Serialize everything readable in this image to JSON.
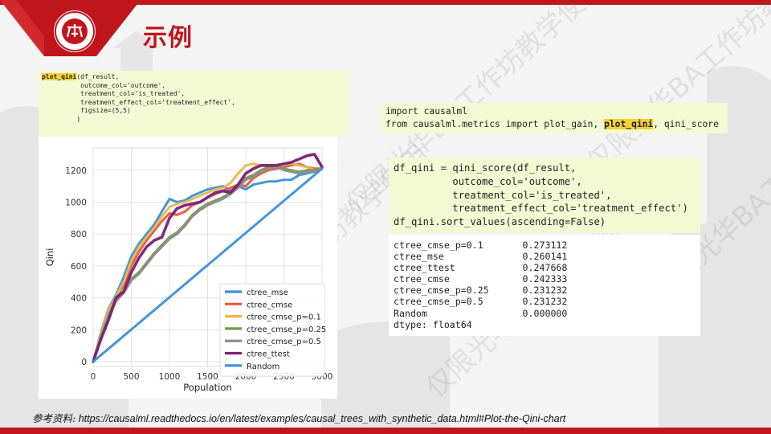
{
  "slide": {
    "title": "示例",
    "accent_color": "#c0151b",
    "logo_icon": "university-seal-icon",
    "logo_text": "PEKING UNIVERSITY 1898",
    "watermark_text": "仅限光华BA工作坊教学使用"
  },
  "qini_call": {
    "function_name": "plot_qini",
    "lines": [
      "(df_result,",
      "          outcome_col='outcome',",
      "          treatment_col='is_treated',",
      "          treatment_effect_col='treatment_effect',",
      "          figsize=(5,5)",
      "         )"
    ]
  },
  "imports": {
    "line1": "import causalml",
    "line2_pre": "from causalml.metrics import plot_gain, ",
    "line2_hl": "plot_qini",
    "line2_post": ", qini_score"
  },
  "score_code": {
    "lines": [
      "df_qini = qini_score(df_result,",
      "          outcome_col='outcome',",
      "          treatment_col='is_treated',",
      "          treatment_effect_col='treatment_effect')",
      "df_qini.sort_values(ascending=False)"
    ]
  },
  "score_output": {
    "lines": [
      "ctree_cmse_p=0.1       0.273112",
      "ctree_mse              0.260141",
      "ctree_ttest            0.247668",
      "ctree_cmse             0.242333",
      "ctree_cmse_p=0.25      0.231232",
      "ctree_cmse_p=0.5       0.231232",
      "Random                 0.000000",
      "dtype: float64"
    ]
  },
  "chart_data": {
    "type": "line",
    "xlabel": "Population",
    "ylabel": "Qini",
    "xlim": [
      0,
      3000
    ],
    "ylim": [
      0,
      1300
    ],
    "xticks": [
      0,
      500,
      1000,
      1500,
      2000,
      2500,
      3000
    ],
    "yticks": [
      0,
      200,
      400,
      600,
      800,
      1000,
      1200
    ],
    "grid": true,
    "legend_position": "lower-right",
    "series": [
      {
        "name": "ctree_mse",
        "color": "#3b8fd9",
        "x": [
          0,
          100,
          200,
          300,
          400,
          500,
          600,
          700,
          800,
          900,
          1000,
          1100,
          1200,
          1300,
          1400,
          1500,
          1600,
          1700,
          1800,
          1900,
          2000,
          2100,
          2200,
          2300,
          2400,
          2500,
          2600,
          2700,
          2800,
          2900,
          3000
        ],
        "y": [
          0,
          180,
          330,
          420,
          530,
          660,
          740,
          800,
          860,
          940,
          1020,
          1000,
          1010,
          1040,
          1060,
          1080,
          1090,
          1100,
          1070,
          1100,
          1080,
          1110,
          1120,
          1130,
          1130,
          1140,
          1140,
          1170,
          1180,
          1190,
          1210
        ]
      },
      {
        "name": "ctree_cmse",
        "color": "#e8583a",
        "x": [
          0,
          100,
          200,
          300,
          400,
          500,
          600,
          700,
          800,
          900,
          1000,
          1100,
          1200,
          1300,
          1400,
          1500,
          1600,
          1700,
          1800,
          1900,
          2000,
          2100,
          2200,
          2300,
          2400,
          2500,
          2600,
          2700,
          2800,
          2900,
          3000
        ],
        "y": [
          0,
          160,
          300,
          400,
          480,
          600,
          690,
          760,
          820,
          880,
          930,
          920,
          940,
          980,
          1000,
          1030,
          1050,
          1070,
          1090,
          1110,
          1100,
          1150,
          1180,
          1200,
          1210,
          1220,
          1230,
          1240,
          1220,
          1210,
          1210
        ]
      },
      {
        "name": "ctree_cmse_p=0.1",
        "color": "#e5b94a",
        "x": [
          0,
          100,
          200,
          300,
          400,
          500,
          600,
          700,
          800,
          900,
          1000,
          1100,
          1200,
          1300,
          1400,
          1500,
          1600,
          1700,
          1800,
          1900,
          2000,
          2100,
          2200,
          2300,
          2400,
          2500,
          2600,
          2700,
          2800,
          2900,
          3000
        ],
        "y": [
          0,
          170,
          320,
          410,
          500,
          630,
          720,
          780,
          840,
          910,
          970,
          990,
          1000,
          1020,
          1040,
          1060,
          1080,
          1090,
          1120,
          1180,
          1230,
          1240,
          1230,
          1220,
          1230,
          1240,
          1240,
          1230,
          1220,
          1200,
          1210
        ]
      },
      {
        "name": "ctree_cmse_p=0.25",
        "color": "#6f9c45",
        "x": [
          0,
          100,
          200,
          300,
          400,
          500,
          600,
          700,
          800,
          900,
          1000,
          1100,
          1200,
          1300,
          1400,
          1500,
          1600,
          1700,
          1800,
          1900,
          2000,
          2100,
          2200,
          2300,
          2400,
          2500,
          2600,
          2700,
          2800,
          2900,
          3000
        ],
        "y": [
          0,
          150,
          290,
          390,
          440,
          520,
          560,
          620,
          680,
          730,
          780,
          810,
          860,
          920,
          960,
          990,
          1010,
          1030,
          1060,
          1100,
          1150,
          1170,
          1200,
          1220,
          1230,
          1210,
          1200,
          1190,
          1200,
          1200,
          1210
        ]
      },
      {
        "name": "ctree_cmse_p=0.5",
        "color": "#8c8c8c",
        "x": [
          0,
          100,
          200,
          300,
          400,
          500,
          600,
          700,
          800,
          900,
          1000,
          1100,
          1200,
          1300,
          1400,
          1500,
          1600,
          1700,
          1800,
          1900,
          2000,
          2100,
          2200,
          2300,
          2400,
          2500,
          2600,
          2700,
          2800,
          2900,
          3000
        ],
        "y": [
          0,
          140,
          280,
          380,
          430,
          510,
          550,
          610,
          670,
          720,
          770,
          800,
          850,
          910,
          950,
          980,
          1000,
          1020,
          1050,
          1090,
          1140,
          1160,
          1190,
          1210,
          1220,
          1200,
          1190,
          1180,
          1190,
          1190,
          1210
        ]
      },
      {
        "name": "ctree_ttest",
        "color": "#7b2075",
        "x": [
          0,
          100,
          200,
          300,
          400,
          500,
          600,
          700,
          800,
          900,
          1000,
          1100,
          1200,
          1300,
          1400,
          1500,
          1600,
          1700,
          1800,
          1900,
          2000,
          2100,
          2200,
          2300,
          2400,
          2500,
          2600,
          2700,
          2800,
          2900,
          3000
        ],
        "y": [
          0,
          140,
          260,
          400,
          440,
          560,
          650,
          720,
          760,
          780,
          900,
          960,
          980,
          990,
          1000,
          1030,
          1060,
          1070,
          1060,
          1110,
          1180,
          1210,
          1230,
          1230,
          1230,
          1240,
          1250,
          1270,
          1290,
          1300,
          1220
        ]
      },
      {
        "name": "Random",
        "color": "#3b8fd9",
        "x": [
          0,
          3000
        ],
        "y": [
          0,
          1210
        ]
      }
    ]
  },
  "reference": {
    "label": "参考资料:",
    "url": " https://causalml.readthedocs.io/en/latest/examples/causal_trees_with_synthetic_data.html#Plot-the-Qini-chart"
  }
}
